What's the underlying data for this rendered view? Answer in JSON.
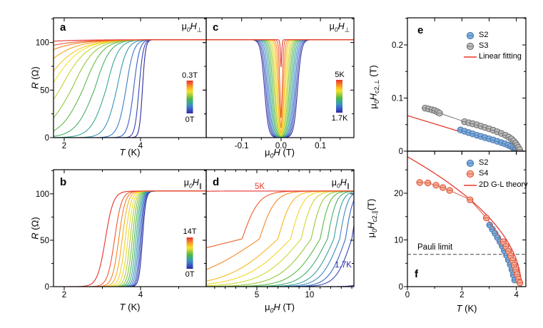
{
  "colors": {
    "rainbow_stops": [
      "#2f2b9d",
      "#3a55c4",
      "#3e86c9",
      "#38a98e",
      "#51b648",
      "#a6cb3a",
      "#f3e32b",
      "#f8b31e",
      "#f2712d",
      "#e6332e"
    ],
    "frame": "#000000",
    "fit_red": "#e8392f",
    "s2_fill": "#7db0e0",
    "s2_edge": "#4a72a8",
    "s3_fill": "#bdbdbd",
    "s3_edge": "#6a6a6a",
    "s4_fill": "#f6b094",
    "s4_edge": "#d8503c",
    "pauli_dash": "#444444",
    "annotation_navy": "#2f2b9d"
  },
  "labels": {
    "axis": {
      "r_ohm": [
        {
          "t": "R",
          "s": "i"
        },
        {
          "t": " (Ω)",
          "s": "n"
        }
      ],
      "t_k": [
        {
          "t": "T",
          "s": "i"
        },
        {
          "t": " (K)",
          "s": "n"
        }
      ],
      "mu0h_t": [
        {
          "t": "μ",
          "s": "n"
        },
        {
          "t": "0",
          "s": "isub"
        },
        {
          "t": "H",
          "s": "i"
        },
        {
          "t": " (T)",
          "s": "n"
        }
      ]
    },
    "corner": {
      "perp": [
        {
          "t": "μ",
          "s": "n"
        },
        {
          "t": "0",
          "s": "isub"
        },
        {
          "t": "H",
          "s": "i"
        },
        {
          "t": "⊥",
          "s": "sub"
        }
      ],
      "par": [
        {
          "t": "μ",
          "s": "n"
        },
        {
          "t": "0",
          "s": "isub"
        },
        {
          "t": "H",
          "s": "i"
        },
        {
          "t": "∥",
          "s": "sub"
        }
      ]
    },
    "ylabel_e": [
      {
        "t": "μ",
        "s": "n"
      },
      {
        "t": "0",
        "s": "isub"
      },
      {
        "t": "H",
        "s": "i"
      },
      {
        "t": "c2,⊥",
        "s": "sub"
      },
      {
        "t": " (T)",
        "s": "n"
      }
    ],
    "ylabel_f": [
      {
        "t": "μ",
        "s": "n"
      },
      {
        "t": "0",
        "s": "isub"
      },
      {
        "t": "H",
        "s": "i"
      },
      {
        "t": "c2,∥",
        "s": "sub"
      },
      {
        "t": "(T)",
        "s": "n"
      }
    ]
  },
  "chart_data": [
    {
      "id": "a",
      "panel_letter": "a",
      "type": "line",
      "model": "transition_vs_T",
      "xlabel": "T (K)",
      "ylabel": "R (Ω)",
      "corner_label": "μ0H⊥",
      "xlim": [
        1.72,
        5.72
      ],
      "ylim": [
        0,
        126
      ],
      "xticks": [
        2,
        4
      ],
      "xtick_labels": [
        "2",
        "4"
      ],
      "xminor": [
        3,
        5
      ],
      "yticks": [
        0,
        50,
        100
      ],
      "ytick_labels": [
        "0",
        "50",
        "100"
      ],
      "yminor": [
        25,
        75,
        125
      ],
      "normal_resistance_ohm": 103,
      "colorbar": {
        "top_label": "0.3T",
        "bottom_label": "0T"
      },
      "curves": [
        {
          "tc": 4.05,
          "wl": 0.04,
          "wr": 0.04
        },
        {
          "tc": 3.96,
          "wl": 0.055,
          "wr": 0.055
        },
        {
          "tc": 3.82,
          "wl": 0.08,
          "wr": 0.075
        },
        {
          "tc": 3.62,
          "wl": 0.11,
          "wr": 0.1
        },
        {
          "tc": 3.38,
          "wl": 0.15,
          "wr": 0.13
        },
        {
          "tc": 3.1,
          "wl": 0.2,
          "wr": 0.16
        },
        {
          "tc": 2.8,
          "wl": 0.25,
          "wr": 0.2
        },
        {
          "tc": 2.5,
          "wl": 0.3,
          "wr": 0.25
        },
        {
          "tc": 2.2,
          "wl": 0.35,
          "wr": 0.3
        },
        {
          "tc": 1.9,
          "wl": 0.4,
          "wr": 0.35
        },
        {
          "tc": 1.62,
          "wl": 0.45,
          "wr": 0.4
        },
        {
          "tc": 1.38,
          "wl": 0.5,
          "wr": 0.45
        },
        {
          "tc": 1.0,
          "wl": 0.55,
          "wr": 0.5
        },
        {
          "tc": 0.45,
          "wl": 0.62,
          "wr": 0.58
        },
        {
          "tc": -0.1,
          "wl": 0.7,
          "wr": 0.65
        },
        {
          "tc": -1.2,
          "wl": 0.75,
          "wr": 0.7
        }
      ]
    },
    {
      "id": "b",
      "panel_letter": "b",
      "type": "line",
      "model": "transition_vs_T",
      "xlabel": "T (K)",
      "ylabel": "R (Ω)",
      "corner_label": "μ0H∥",
      "xlim": [
        1.72,
        5.72
      ],
      "ylim": [
        0,
        126
      ],
      "xticks": [
        2,
        4
      ],
      "xtick_labels": [
        "2",
        "4"
      ],
      "xminor": [
        3,
        5
      ],
      "yticks": [
        0,
        50,
        100
      ],
      "ytick_labels": [
        "0",
        "50",
        "100"
      ],
      "yminor": [
        25,
        75,
        125
      ],
      "normal_resistance_ohm": 103,
      "colorbar": {
        "top_label": "14T",
        "bottom_label": "0T"
      },
      "curves": [
        {
          "tc": 4.05,
          "w": 0.045
        },
        {
          "tc": 4.02,
          "w": 0.047
        },
        {
          "tc": 3.99,
          "w": 0.049
        },
        {
          "tc": 3.955,
          "w": 0.052
        },
        {
          "tc": 3.92,
          "w": 0.055
        },
        {
          "tc": 3.88,
          "w": 0.058
        },
        {
          "tc": 3.835,
          "w": 0.061
        },
        {
          "tc": 3.785,
          "w": 0.064
        },
        {
          "tc": 3.73,
          "w": 0.068
        },
        {
          "tc": 3.67,
          "w": 0.072
        },
        {
          "tc": 3.6,
          "w": 0.076
        },
        {
          "tc": 3.52,
          "w": 0.08
        },
        {
          "tc": 3.43,
          "w": 0.085
        },
        {
          "tc": 3.32,
          "w": 0.092
        },
        {
          "tc": 3.08,
          "w": 0.105
        }
      ]
    },
    {
      "id": "c",
      "panel_letter": "c",
      "type": "line",
      "model": "dip_vs_H",
      "xlabel": "μ0H (T)",
      "ylabel": "R (Ω)",
      "corner_label": "μ0H⊥",
      "xlim": [
        -0.19,
        0.185
      ],
      "ylim": [
        0,
        126
      ],
      "xticks": [
        -0.1,
        0,
        0.1
      ],
      "xtick_labels": [
        "-0.1",
        "0.0",
        "0.1"
      ],
      "xminor": [
        -0.15,
        -0.05,
        0.05,
        0.15
      ],
      "yticks": [
        0,
        50,
        100
      ],
      "ytick_labels": null,
      "yminor": [
        25,
        75,
        125
      ],
      "normal_resistance_ohm": 103,
      "colorbar": {
        "top_label": "5K",
        "bottom_label": "1.7K"
      },
      "curves": [
        {
          "hc": 0.042,
          "w": 0.005,
          "d": 1
        },
        {
          "hc": 0.0385,
          "w": 0.005,
          "d": 1
        },
        {
          "hc": 0.035,
          "w": 0.0048,
          "d": 1
        },
        {
          "hc": 0.0315,
          "w": 0.0046,
          "d": 1
        },
        {
          "hc": 0.028,
          "w": 0.0044,
          "d": 1
        },
        {
          "hc": 0.0245,
          "w": 0.0042,
          "d": 1
        },
        {
          "hc": 0.021,
          "w": 0.004,
          "d": 1
        },
        {
          "hc": 0.0175,
          "w": 0.0038,
          "d": 1
        },
        {
          "hc": 0.0145,
          "w": 0.0035,
          "d": 1
        },
        {
          "hc": 0.0115,
          "w": 0.0032,
          "d": 1
        },
        {
          "hc": 0.0085,
          "w": 0.0028,
          "d": 1
        },
        {
          "hc": 0.0055,
          "w": 0.0024,
          "d": 1
        },
        {
          "hc": 0.003,
          "w": 0.0017,
          "d": 0.95
        },
        {
          "hc": 0.0012,
          "w": 0.001,
          "d": 0.38
        }
      ]
    },
    {
      "id": "d",
      "panel_letter": "d",
      "type": "line",
      "model": "rise_vs_H",
      "xlabel": "μ0H (T)",
      "ylabel": "R (Ω)",
      "corner_label": "μ0H∥",
      "xlim": [
        0.2,
        14.2
      ],
      "ylim": [
        0,
        126
      ],
      "xticks": [
        5,
        10
      ],
      "xtick_labels": [
        "5",
        "10"
      ],
      "xminor": [
        1,
        2,
        3,
        4,
        6,
        7,
        8,
        9,
        11,
        12,
        13,
        14
      ],
      "yticks": [
        0,
        50,
        100
      ],
      "ytick_labels": null,
      "yminor": [
        25,
        75,
        125
      ],
      "normal_resistance_ohm": 103,
      "annotations": [
        {
          "text": "5K",
          "color": "red"
        },
        {
          "text": "1.7K",
          "color": "navy"
        }
      ],
      "curves": [
        {
          "hc": 16.8,
          "wl": 0.6,
          "wr": 0.5
        },
        {
          "hc": 14.0,
          "wl": 0.75,
          "wr": 0.35
        },
        {
          "hc": 13.4,
          "wl": 0.8,
          "wr": 0.36
        },
        {
          "hc": 12.85,
          "wl": 0.9,
          "wr": 0.38
        },
        {
          "hc": 12.3,
          "wl": 1.0,
          "wr": 0.4
        },
        {
          "hc": 11.7,
          "wl": 1.15,
          "wr": 0.42
        },
        {
          "hc": 11.0,
          "wl": 1.35,
          "wr": 0.45
        },
        {
          "hc": 10.15,
          "wl": 1.6,
          "wr": 0.5
        },
        {
          "hc": 9.2,
          "wl": 1.9,
          "wr": 0.55
        },
        {
          "hc": 8.2,
          "wl": 2.2,
          "wr": 0.6
        },
        {
          "hc": 7.0,
          "wl": 2.45,
          "wr": 0.65
        },
        {
          "hc": 5.25,
          "wl": 3.3,
          "wr": 0.75
        },
        {
          "hc": 3.6,
          "wl": 9.0,
          "wr": 0.8
        },
        {
          "hc": -6.0,
          "wl": 1.0,
          "wr": 1.0
        }
      ]
    },
    {
      "id": "e",
      "panel_letter": "e",
      "type": "scatter",
      "xlabel": "T (K)",
      "ylabel": "μ0Hc2,⊥ (T)",
      "xlim": [
        0,
        4.35
      ],
      "ylim": [
        0,
        0.251
      ],
      "xticks": [
        1,
        2,
        3,
        4
      ],
      "xtick_labels": null,
      "xminor": [],
      "yticks": [
        0,
        0.1,
        0.2
      ],
      "ytick_labels": [
        "0",
        "0.1",
        "0.2"
      ],
      "yminor": [
        0.05,
        0.15,
        0.25
      ],
      "series": [
        {
          "name": "S2",
          "marker": "circle",
          "points": [
            [
              1.95,
              0.04
            ],
            [
              2.1,
              0.0375
            ],
            [
              2.25,
              0.035
            ],
            [
              2.4,
              0.0325
            ],
            [
              2.55,
              0.03
            ],
            [
              2.7,
              0.0278
            ],
            [
              2.85,
              0.0255
            ],
            [
              3.0,
              0.0232
            ],
            [
              3.15,
              0.021
            ],
            [
              3.3,
              0.0185
            ],
            [
              3.45,
              0.016
            ],
            [
              3.58,
              0.0138
            ],
            [
              3.7,
              0.0115
            ],
            [
              3.8,
              0.009
            ],
            [
              3.88,
              0.0065
            ],
            [
              3.95,
              0.004
            ],
            [
              4.0,
              0.002
            ]
          ]
        },
        {
          "name": "S3",
          "marker": "circle",
          "points": [
            [
              0.65,
              0.081
            ],
            [
              0.78,
              0.0795
            ],
            [
              0.9,
              0.078
            ],
            [
              1.0,
              0.0765
            ],
            [
              1.1,
              0.074
            ],
            [
              1.18,
              0.0715
            ],
            [
              2.1,
              0.0555
            ],
            [
              2.25,
              0.0535
            ],
            [
              2.4,
              0.0515
            ],
            [
              2.55,
              0.0495
            ],
            [
              2.7,
              0.047
            ],
            [
              2.85,
              0.0445
            ],
            [
              3.0,
              0.042
            ],
            [
              3.15,
              0.0395
            ],
            [
              3.3,
              0.0365
            ],
            [
              3.45,
              0.0335
            ],
            [
              3.6,
              0.03
            ],
            [
              3.72,
              0.0265
            ],
            [
              3.82,
              0.023
            ],
            [
              3.9,
              0.019
            ],
            [
              3.97,
              0.015
            ],
            [
              4.02,
              0.011
            ],
            [
              4.07,
              0.007
            ],
            [
              4.12,
              0.003
            ]
          ]
        }
      ],
      "fit_line": {
        "label": "Linear fitting",
        "points": [
          [
            0,
            0.067
          ],
          [
            4.28,
            0
          ]
        ]
      }
    },
    {
      "id": "f",
      "panel_letter": "f",
      "type": "scatter",
      "xlabel": "T (K)",
      "ylabel": "μ0Hc2,∥(T)",
      "xlim": [
        0,
        4.35
      ],
      "ylim": [
        0,
        29
      ],
      "xticks": [
        0,
        2,
        4
      ],
      "xtick_labels": [
        "0",
        "2",
        "4"
      ],
      "xminor": [
        1,
        3
      ],
      "yticks": [
        0,
        10,
        20
      ],
      "ytick_labels": [
        "0",
        "10",
        "20"
      ],
      "yminor": [
        5,
        15,
        25
      ],
      "series": [
        {
          "name": "S2",
          "marker": "circle",
          "points": [
            [
              3.02,
              13.2
            ],
            [
              3.12,
              12.3
            ],
            [
              3.22,
              11.4
            ],
            [
              3.31,
              10.5
            ],
            [
              3.4,
              9.6
            ],
            [
              3.48,
              8.7
            ],
            [
              3.56,
              7.7
            ],
            [
              3.64,
              6.7
            ],
            [
              3.71,
              5.7
            ],
            [
              3.78,
              4.7
            ],
            [
              3.84,
              3.6
            ],
            [
              3.89,
              2.5
            ],
            [
              3.94,
              1.4
            ]
          ]
        },
        {
          "name": "S4",
          "marker": "circle",
          "points": [
            [
              0.45,
              22.3
            ],
            [
              0.75,
              22.2
            ],
            [
              1.05,
              21.7
            ],
            [
              1.3,
              21.2
            ],
            [
              1.55,
              20.6
            ],
            [
              2.3,
              18.6
            ],
            [
              2.9,
              14.7
            ],
            [
              3.52,
              9.6
            ],
            [
              3.62,
              8.6
            ],
            [
              3.71,
              7.6
            ],
            [
              3.79,
              6.6
            ],
            [
              3.86,
              5.6
            ],
            [
              3.92,
              4.6
            ],
            [
              3.98,
              3.6
            ],
            [
              4.03,
              2.6
            ],
            [
              4.08,
              1.6
            ],
            [
              4.13,
              0.8
            ]
          ]
        }
      ],
      "gl_curve": {
        "label": "2D G-L theory",
        "h0_tesla": 27.8,
        "tc_kelvin": 4.18
      },
      "pauli_limit": {
        "label": "Pauli limit",
        "value_tesla": 6.9
      }
    }
  ]
}
